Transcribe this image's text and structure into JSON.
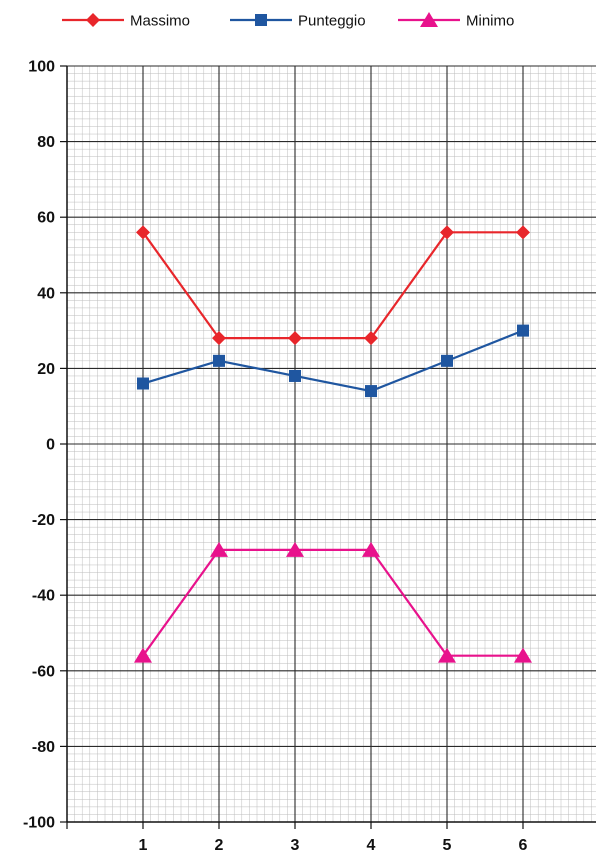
{
  "chart_data": {
    "type": "line",
    "categories": [
      "1",
      "2",
      "3",
      "4",
      "5",
      "6"
    ],
    "ylim": [
      -100,
      100
    ],
    "yticks": [
      "100",
      "80",
      "60",
      "40",
      "20",
      "0",
      "-20",
      "-40",
      "-60",
      "-80",
      "-100"
    ],
    "grid": true,
    "legend_position": "top",
    "series": [
      {
        "name": "Massimo",
        "color": "#e8262b",
        "marker": "diamond",
        "values": [
          56,
          28,
          28,
          28,
          56,
          56
        ]
      },
      {
        "name": "Punteggio",
        "color": "#1f56a0",
        "marker": "square",
        "values": [
          16,
          22,
          18,
          14,
          22,
          30
        ]
      },
      {
        "name": "Minimo",
        "color": "#e8128c",
        "marker": "triangle",
        "values": [
          -56,
          -28,
          -28,
          -28,
          -56,
          -56
        ]
      }
    ]
  }
}
